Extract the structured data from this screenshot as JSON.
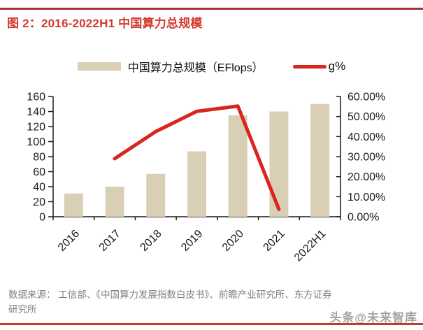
{
  "page": {
    "background": "#ffffff",
    "top_rule_color": "#A8343A",
    "bottom_rule_color": "#C23B30"
  },
  "header": {
    "title": "图 2：2016-2022H1 中国算力总规模",
    "title_color": "#D2392E"
  },
  "legend": {
    "bar_label": "中国算力总规模（EFlops）",
    "line_label": "g%"
  },
  "chart_data": {
    "type": "bar",
    "subtype": "bar+line combo with dual y-axes",
    "title": "2016-2022H1 中国算力总规模",
    "categories": [
      "2016",
      "2017",
      "2018",
      "2019",
      "2020",
      "2021",
      "2022H1"
    ],
    "series": [
      {
        "name": "中国算力总规模（EFlops）",
        "type": "bar",
        "axis": "left",
        "color": "#D9CFB4",
        "values": [
          31,
          40,
          57,
          87,
          135,
          140,
          150
        ]
      },
      {
        "name": "g%",
        "type": "line",
        "axis": "right",
        "color": "#DA251D",
        "values": [
          null,
          29.0,
          42.5,
          52.6,
          55.2,
          3.7,
          null
        ]
      }
    ],
    "left_axis": {
      "min": 0,
      "max": 160,
      "step": 20,
      "tick_labels": [
        "0",
        "20",
        "40",
        "60",
        "80",
        "100",
        "120",
        "140",
        "160"
      ]
    },
    "right_axis": {
      "min": 0,
      "max": 60,
      "step": 10,
      "tick_labels": [
        "0.00%",
        "10.00%",
        "20.00%",
        "30.00%",
        "40.00%",
        "50.00%",
        "60.00%"
      ]
    },
    "grid": "off",
    "legend_position": "top-center",
    "axis_color": "#1a1a1a"
  },
  "footer": {
    "source_line1": "数据来源： 工信部、《中国算力发展指数白皮书》、前瞻产业研究所、东方证券",
    "source_line2": "研究所",
    "watermark": "头条@未来智库"
  }
}
